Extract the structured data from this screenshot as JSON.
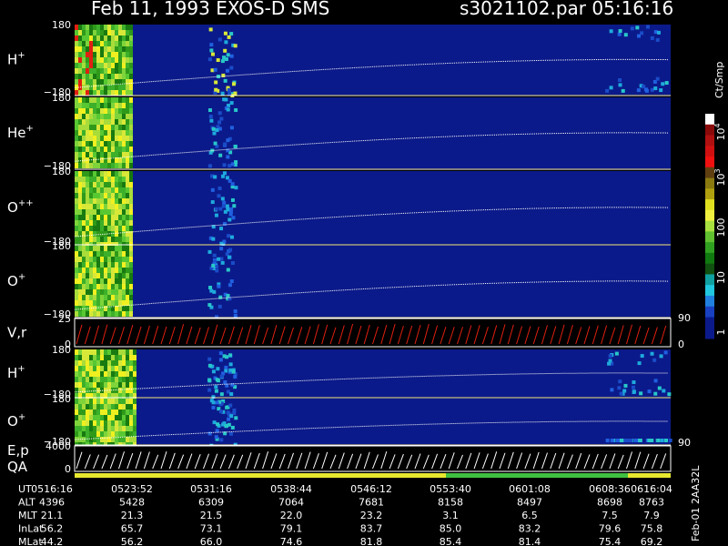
{
  "header": {
    "title": "Feb 11, 1993   EXOS-D SMS",
    "file": "s3021102.par  05:16:16"
  },
  "panels": [
    {
      "label": "H",
      "sup": "+",
      "top": "180",
      "bottom": "−180"
    },
    {
      "label": "He",
      "sup": "+",
      "top": "180",
      "bottom": "−180"
    },
    {
      "label": "O",
      "sup": "++",
      "top": "180",
      "bottom": "−180"
    },
    {
      "label": "O",
      "sup": "+",
      "top": "180",
      "bottom": "−180"
    },
    {
      "label": "V,r",
      "top": "25",
      "bottom": "0",
      "right": [
        "90",
        "0"
      ]
    },
    {
      "label": "H",
      "sup": "+",
      "top": "180",
      "bottom": "−180"
    },
    {
      "label": "O",
      "sup": "+",
      "top": "180",
      "bottom": "−180"
    },
    {
      "label": "E,p",
      "label2": "QA",
      "top": "4000",
      "bottom": "0",
      "right": [
        "90"
      ]
    }
  ],
  "colorbar": {
    "unit": "Ct/Smp",
    "labels": [
      {
        "text": "10",
        "sup": "4"
      },
      {
        "text": "10",
        "sup": "3"
      },
      {
        "text": "100"
      },
      {
        "text": "10"
      },
      {
        "text": "1"
      }
    ]
  },
  "table": {
    "rows": [
      {
        "name": "UT",
        "values": [
          "0516:16",
          "0523:52",
          "0531:16",
          "0538:44",
          "0546:12",
          "0553:40",
          "0601:08",
          "0608:36",
          "0616:04"
        ]
      },
      {
        "name": "ALT",
        "values": [
          "4396",
          "5428",
          "6309",
          "7064",
          "7681",
          "8158",
          "8497",
          "8698",
          "8763"
        ]
      },
      {
        "name": "MLT",
        "values": [
          "21.1",
          "21.3",
          "21.5",
          "22.0",
          "23.2",
          "3.1",
          "6.5",
          "7.5",
          "7.9"
        ]
      },
      {
        "name": "InLat",
        "values": [
          "56.2",
          "65.7",
          "73.1",
          "79.1",
          "83.7",
          "85.0",
          "83.2",
          "79.6",
          "75.8"
        ]
      },
      {
        "name": "MLat",
        "values": [
          "44.2",
          "56.2",
          "66.0",
          "74.6",
          "81.8",
          "85.4",
          "81.4",
          "75.4",
          "69.2"
        ]
      }
    ]
  },
  "footer": {
    "code": "Feb-01 2AA32L"
  }
}
